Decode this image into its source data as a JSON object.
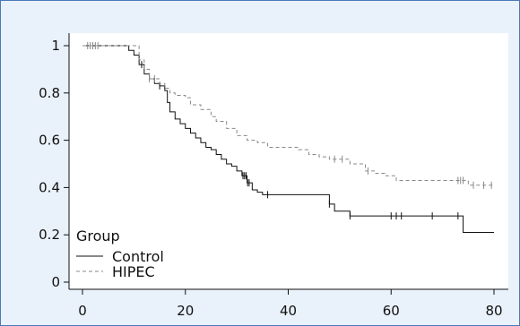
{
  "chart_data": {
    "type": "line",
    "title": "",
    "xlabel": "",
    "ylabel": "",
    "xlim": [
      0,
      80
    ],
    "ylim": [
      0,
      1
    ],
    "x_ticks": [
      0,
      20,
      40,
      60,
      80
    ],
    "y_ticks": [
      0,
      0.2,
      0.4,
      0.6,
      0.8,
      1
    ],
    "x_tick_labels": [
      "0",
      "20",
      "40",
      "60",
      "80"
    ],
    "y_tick_labels": [
      "0",
      "0.2",
      "0.4",
      "0.6",
      "0.8",
      "1"
    ],
    "grid": false,
    "legend": {
      "title": "Group",
      "position": "bottom-left",
      "entries": [
        "Control",
        "HIPEC"
      ]
    },
    "series": [
      {
        "name": "Control",
        "line_style": "solid",
        "color": "#111111",
        "x": [
          0,
          7,
          9,
          10,
          11,
          12,
          13,
          14,
          15,
          16,
          16.5,
          17,
          18,
          19,
          20,
          21,
          22,
          23,
          24,
          25,
          26,
          27,
          28,
          29,
          30,
          31,
          32,
          33,
          34,
          35,
          36,
          47,
          48,
          49,
          52,
          60,
          74,
          80
        ],
        "y": [
          1.0,
          1.0,
          0.98,
          0.96,
          0.92,
          0.88,
          0.86,
          0.84,
          0.83,
          0.81,
          0.76,
          0.72,
          0.69,
          0.67,
          0.65,
          0.63,
          0.61,
          0.59,
          0.57,
          0.56,
          0.54,
          0.52,
          0.5,
          0.49,
          0.47,
          0.45,
          0.42,
          0.39,
          0.38,
          0.37,
          0.37,
          0.37,
          0.33,
          0.3,
          0.28,
          0.28,
          0.21,
          0.21
        ],
        "censor_x": [
          11.5,
          15,
          31.2,
          31.5,
          31.8,
          32.1,
          32.4,
          36,
          48,
          52,
          60,
          61,
          62,
          68,
          73
        ]
      },
      {
        "name": "HIPEC",
        "line_style": "dashed",
        "color": "#888888",
        "x": [
          0,
          9,
          11,
          12,
          13,
          15,
          16,
          17,
          18,
          20,
          21,
          23,
          25,
          26,
          28,
          30,
          32,
          34,
          36,
          40,
          42,
          44,
          46,
          48,
          50,
          52,
          55,
          57,
          59,
          61,
          73,
          75,
          80
        ],
        "y": [
          1.0,
          1.0,
          0.94,
          0.9,
          0.86,
          0.84,
          0.82,
          0.8,
          0.79,
          0.78,
          0.75,
          0.73,
          0.7,
          0.68,
          0.65,
          0.62,
          0.6,
          0.59,
          0.57,
          0.57,
          0.56,
          0.54,
          0.53,
          0.52,
          0.52,
          0.5,
          0.47,
          0.46,
          0.45,
          0.43,
          0.43,
          0.41,
          0.41
        ],
        "censor_x": [
          1,
          1.5,
          2,
          2.5,
          3,
          13,
          14,
          49,
          50.5,
          55.5,
          73,
          73.5,
          74,
          76,
          78,
          79.5
        ]
      }
    ]
  }
}
